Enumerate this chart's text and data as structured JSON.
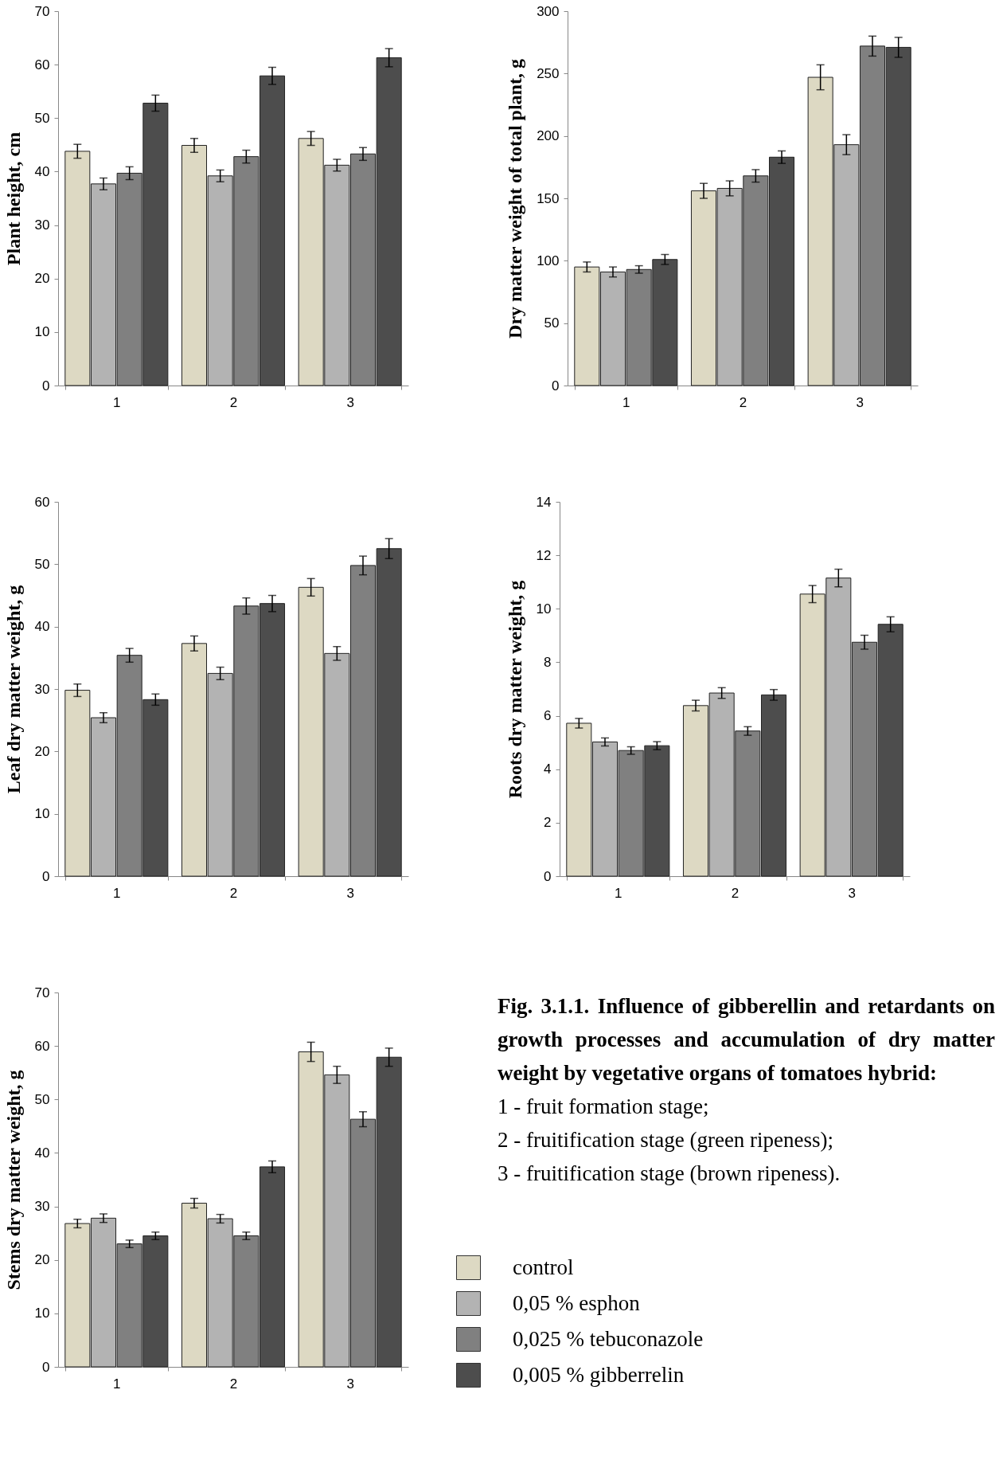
{
  "chart_data": [
    {
      "type": "bar",
      "ylabel": "Plant height, cm",
      "categories": [
        "1",
        "2",
        "3"
      ],
      "ylim": [
        0,
        70
      ],
      "yticks": [
        0,
        10,
        20,
        30,
        40,
        50,
        60,
        70
      ],
      "series": [
        {
          "color": "#ddd9c3",
          "values": [
            43.8,
            44.9,
            46.2
          ],
          "errors": [
            1.3,
            1.3,
            1.3
          ]
        },
        {
          "color": "#b3b3b3",
          "values": [
            37.7,
            39.2,
            41.2
          ],
          "errors": [
            1.1,
            1.1,
            1.1
          ]
        },
        {
          "color": "#808080",
          "values": [
            39.7,
            42.8,
            43.3
          ],
          "errors": [
            1.2,
            1.2,
            1.2
          ]
        },
        {
          "color": "#4d4d4d",
          "values": [
            52.8,
            57.9,
            61.3
          ],
          "errors": [
            1.5,
            1.6,
            1.7
          ]
        }
      ]
    },
    {
      "type": "bar",
      "ylabel": "Dry matter weight of total plant, g",
      "categories": [
        "1",
        "2",
        "3"
      ],
      "ylim": [
        0,
        300
      ],
      "yticks": [
        0,
        50,
        100,
        150,
        200,
        250,
        300
      ],
      "series": [
        {
          "color": "#ddd9c3",
          "values": [
            95,
            156,
            247
          ],
          "errors": [
            4,
            6,
            10
          ]
        },
        {
          "color": "#b3b3b3",
          "values": [
            91,
            158,
            193
          ],
          "errors": [
            4,
            6,
            8
          ]
        },
        {
          "color": "#808080",
          "values": [
            93,
            168,
            272
          ],
          "errors": [
            3,
            5,
            8
          ]
        },
        {
          "color": "#4d4d4d",
          "values": [
            101,
            183,
            271
          ],
          "errors": [
            4,
            5,
            8
          ]
        }
      ]
    },
    {
      "type": "bar",
      "ylabel": "Leaf dry matter weight, g",
      "categories": [
        "1",
        "2",
        "3"
      ],
      "ylim": [
        0,
        60
      ],
      "yticks": [
        0,
        10,
        20,
        30,
        40,
        50,
        60
      ],
      "series": [
        {
          "color": "#ddd9c3",
          "values": [
            29.8,
            37.3,
            46.3
          ],
          "errors": [
            1,
            1.2,
            1.4
          ]
        },
        {
          "color": "#b3b3b3",
          "values": [
            25.4,
            32.5,
            35.7
          ],
          "errors": [
            0.8,
            1,
            1.1
          ]
        },
        {
          "color": "#808080",
          "values": [
            35.4,
            43.3,
            49.8
          ],
          "errors": [
            1.1,
            1.3,
            1.5
          ]
        },
        {
          "color": "#4d4d4d",
          "values": [
            28.3,
            43.7,
            52.5
          ],
          "errors": [
            0.9,
            1.3,
            1.6
          ]
        }
      ]
    },
    {
      "type": "bar",
      "ylabel": "Roots dry matter weight, g",
      "categories": [
        "1",
        "2",
        "3"
      ],
      "ylim": [
        0,
        14
      ],
      "yticks": [
        0,
        2,
        4,
        6,
        8,
        10,
        12,
        14
      ],
      "series": [
        {
          "color": "#ddd9c3",
          "values": [
            5.72,
            6.38,
            10.55
          ],
          "errors": [
            0.18,
            0.2,
            0.32
          ]
        },
        {
          "color": "#b3b3b3",
          "values": [
            5.02,
            6.85,
            11.15
          ],
          "errors": [
            0.15,
            0.2,
            0.33
          ]
        },
        {
          "color": "#808080",
          "values": [
            4.7,
            5.43,
            8.75
          ],
          "errors": [
            0.14,
            0.16,
            0.26
          ]
        },
        {
          "color": "#4d4d4d",
          "values": [
            4.88,
            6.78,
            9.42
          ],
          "errors": [
            0.15,
            0.2,
            0.28
          ]
        }
      ]
    },
    {
      "type": "bar",
      "ylabel": "Stems dry matter weight, g",
      "categories": [
        "1",
        "2",
        "3"
      ],
      "ylim": [
        0,
        70
      ],
      "yticks": [
        0,
        10,
        20,
        30,
        40,
        50,
        60,
        70
      ],
      "legend": "right",
      "annotations": [
        "Fig. 3.1.1. Influence of gibberellin and retardants on growth processes and accumulation of dry matter weight by vegetative organs of tomatoes hybrid:",
        "1 - fruit formation stage;",
        "2 - fruitification stage (green ripeness);",
        "3 - fruitification stage (brown ripeness)."
      ],
      "series": [
        {
          "name": "control",
          "color": "#ddd9c3",
          "values": [
            26.8,
            30.6,
            58.9
          ],
          "errors": [
            0.8,
            0.9,
            1.8
          ]
        },
        {
          "name": "0,05 % esphon",
          "color": "#b3b3b3",
          "values": [
            27.8,
            27.7,
            54.6
          ],
          "errors": [
            0.8,
            0.8,
            1.6
          ]
        },
        {
          "name": "0,025 % tebuconazole",
          "color": "#808080",
          "values": [
            23.0,
            24.5,
            46.3
          ],
          "errors": [
            0.7,
            0.7,
            1.4
          ]
        },
        {
          "name": "0,005 % gibberrelin",
          "color": "#4d4d4d",
          "values": [
            24.5,
            37.4,
            57.9
          ],
          "errors": [
            0.7,
            1.1,
            1.7
          ]
        }
      ]
    }
  ]
}
